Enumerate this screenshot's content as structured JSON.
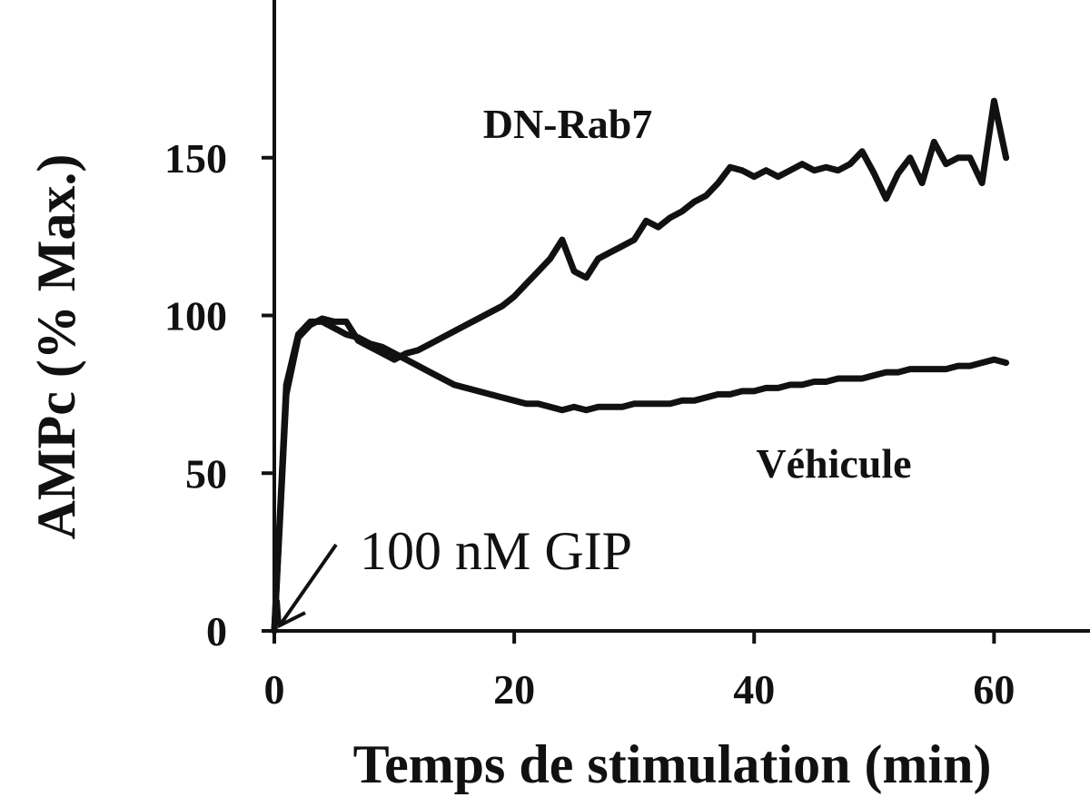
{
  "chart_data": {
    "type": "line",
    "xlabel": "Temps de stimulation (min)",
    "ylabel": "AMPc  (% Max.)",
    "xlim": [
      0,
      68
    ],
    "ylim": [
      0,
      200
    ],
    "xticks": [
      0,
      20,
      40,
      60
    ],
    "yticks": [
      0,
      50,
      100,
      150
    ],
    "grid": false,
    "legend": "none",
    "annotations": [
      {
        "text": "100 nM GIP",
        "x": 0,
        "y": 0
      }
    ],
    "series": [
      {
        "name": "DN-Rab7",
        "x": [
          0,
          1,
          2,
          3,
          4,
          5,
          6,
          7,
          8,
          9,
          10,
          11,
          12,
          13,
          14,
          15,
          16,
          17,
          18,
          19,
          20,
          21,
          22,
          23,
          24,
          25,
          26,
          27,
          28,
          29,
          30,
          31,
          32,
          33,
          34,
          35,
          36,
          37,
          38,
          39,
          40,
          41,
          42,
          43,
          44,
          45,
          46,
          47,
          48,
          49,
          50,
          51,
          52,
          53,
          54,
          55,
          56,
          57,
          58,
          59,
          60,
          61
        ],
        "values": [
          0,
          75,
          93,
          97,
          99,
          98,
          98,
          92,
          90,
          88,
          86,
          88,
          89,
          91,
          93,
          95,
          97,
          99,
          101,
          103,
          106,
          110,
          114,
          118,
          124,
          114,
          112,
          118,
          120,
          122,
          124,
          130,
          128,
          131,
          133,
          136,
          138,
          142,
          147,
          146,
          144,
          146,
          144,
          146,
          148,
          146,
          147,
          146,
          148,
          152,
          145,
          137,
          145,
          150,
          142,
          155,
          148,
          150,
          150,
          142,
          168,
          150
        ]
      },
      {
        "name": "Véhicule",
        "x": [
          0,
          1,
          2,
          3,
          4,
          5,
          6,
          7,
          8,
          9,
          10,
          11,
          12,
          13,
          14,
          15,
          16,
          17,
          18,
          19,
          20,
          21,
          22,
          23,
          24,
          25,
          26,
          27,
          28,
          29,
          30,
          31,
          32,
          33,
          34,
          35,
          36,
          37,
          38,
          39,
          40,
          41,
          42,
          43,
          44,
          45,
          46,
          47,
          48,
          49,
          50,
          51,
          52,
          53,
          54,
          55,
          56,
          57,
          58,
          59,
          60,
          61
        ],
        "values": [
          0,
          78,
          94,
          98,
          98,
          96,
          94,
          93,
          91,
          90,
          88,
          86,
          84,
          82,
          80,
          78,
          77,
          76,
          75,
          74,
          73,
          72,
          72,
          71,
          70,
          71,
          70,
          71,
          71,
          71,
          72,
          72,
          72,
          72,
          73,
          73,
          74,
          75,
          75,
          76,
          76,
          77,
          77,
          78,
          78,
          79,
          79,
          80,
          80,
          80,
          81,
          82,
          82,
          83,
          83,
          83,
          83,
          84,
          84,
          85,
          86,
          85
        ]
      }
    ]
  }
}
